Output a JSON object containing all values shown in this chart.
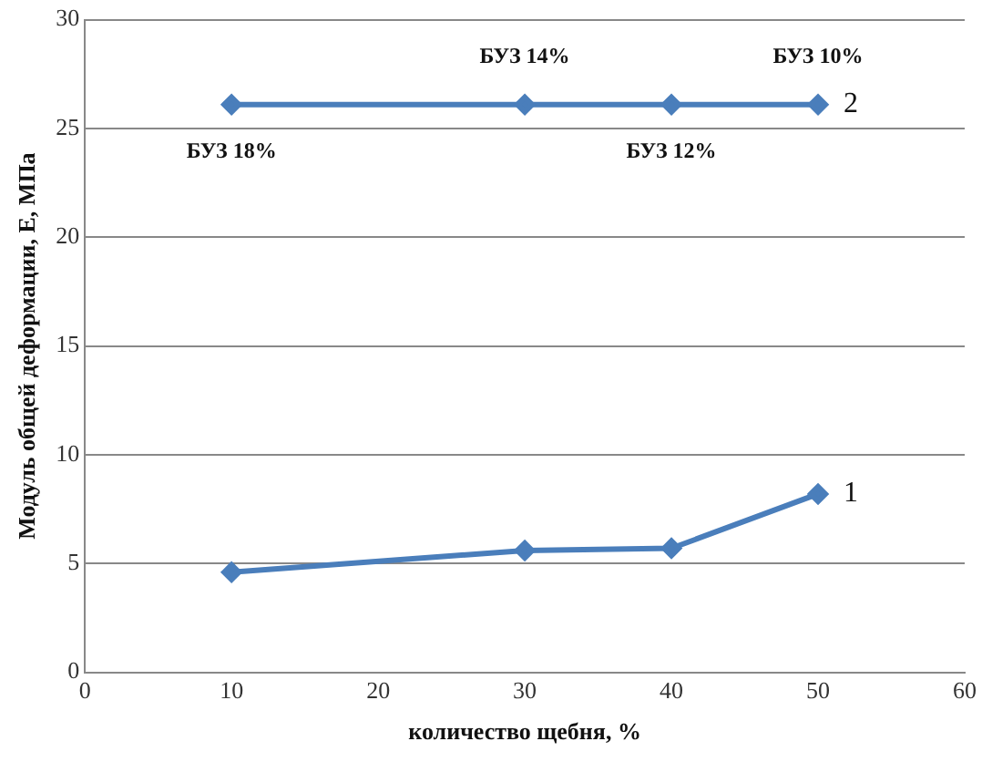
{
  "chart_data": {
    "type": "line",
    "xlabel": "количество щебня, %",
    "ylabel": "Модуль общей деформации, Е, МПа",
    "xlim": [
      0,
      60
    ],
    "xticks": [
      0,
      10,
      20,
      30,
      40,
      50,
      60
    ],
    "ylim": [
      0,
      30
    ],
    "yticks": [
      0,
      5,
      10,
      15,
      20,
      25,
      30
    ],
    "series": [
      {
        "name": "1",
        "color": "#4a7ebb",
        "x": [
          10,
          30,
          40,
          50
        ],
        "values": [
          4.6,
          5.6,
          5.7,
          8.2
        ]
      },
      {
        "name": "2",
        "color": "#4a7ebb",
        "x": [
          10,
          30,
          40,
          50
        ],
        "values": [
          26.1,
          26.1,
          26.1,
          26.1
        ]
      }
    ],
    "annotations": [
      {
        "text": "БУЗ 18%",
        "x": 10,
        "y": 26.1
      },
      {
        "text": "БУЗ 14%",
        "x": 30,
        "y": 26.1
      },
      {
        "text": "БУЗ 12%",
        "x": 40,
        "y": 26.1
      },
      {
        "text": "БУЗ 10%",
        "x": 50,
        "y": 26.1
      }
    ],
    "grid": "y",
    "legend": false,
    "marker": "diamond",
    "line_style": "solid"
  }
}
